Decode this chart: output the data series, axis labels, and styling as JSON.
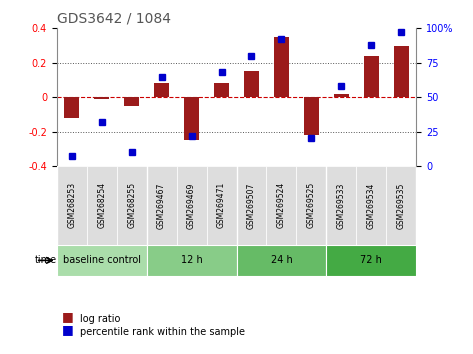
{
  "title": "GDS3642 / 1084",
  "samples": [
    "GSM268253",
    "GSM268254",
    "GSM268255",
    "GSM269467",
    "GSM269469",
    "GSM269471",
    "GSM269507",
    "GSM269524",
    "GSM269525",
    "GSM269533",
    "GSM269534",
    "GSM269535"
  ],
  "log_ratio": [
    -0.12,
    -0.01,
    -0.05,
    0.08,
    -0.25,
    0.08,
    0.15,
    0.35,
    -0.22,
    0.02,
    0.24,
    0.3
  ],
  "percentile": [
    7,
    32,
    10,
    65,
    22,
    68,
    80,
    92,
    20,
    58,
    88,
    97
  ],
  "bar_color": "#9B1B1B",
  "dot_color": "#0000CC",
  "ylim": [
    -0.4,
    0.4
  ],
  "y2lim": [
    0,
    100
  ],
  "yticks_left": [
    -0.4,
    -0.2,
    0.0,
    0.2,
    0.4
  ],
  "yticks_right": [
    0,
    25,
    50,
    75,
    100
  ],
  "groups": [
    {
      "label": "baseline control",
      "start": 0,
      "end": 3,
      "color": "#AADDAA"
    },
    {
      "label": "12 h",
      "start": 3,
      "end": 6,
      "color": "#88CC88"
    },
    {
      "label": "24 h",
      "start": 6,
      "end": 9,
      "color": "#66BB66"
    },
    {
      "label": "72 h",
      "start": 9,
      "end": 12,
      "color": "#44AA44"
    }
  ],
  "xlabel": "time",
  "bg_color": "#FFFFFF",
  "grid_color": "#000000",
  "zero_line_color": "#CC0000",
  "title_color": "#555555"
}
